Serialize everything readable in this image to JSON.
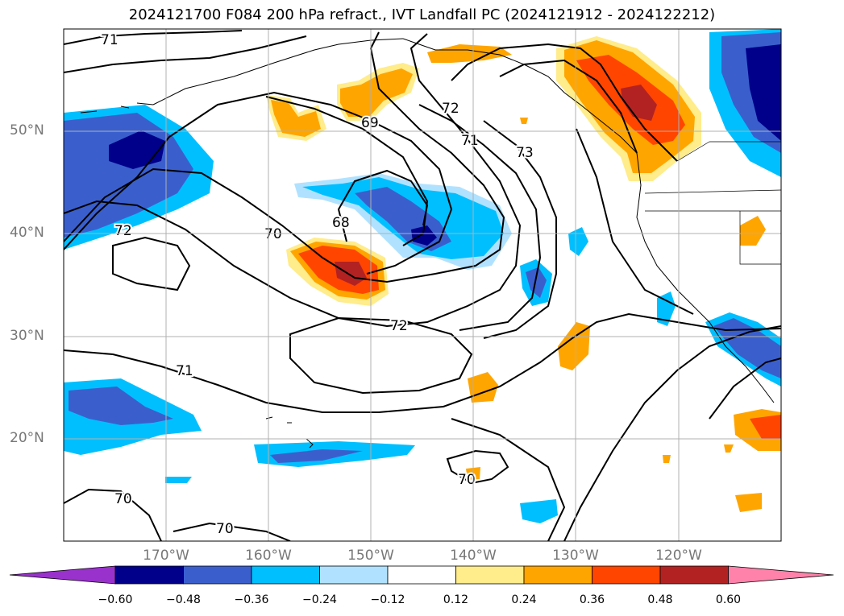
{
  "title": "2024121700 F084 200 hPa refract., IVT Landfall PC (2024121912 - 2024122212)",
  "map": {
    "type": "filled contour map with line contours",
    "grid": true,
    "lon_labels": [
      "170°W",
      "160°W",
      "150°W",
      "140°W",
      "130°W",
      "120°W"
    ],
    "lat_labels": [
      "50°N",
      "40°N",
      "30°N",
      "20°N"
    ],
    "contour_labels": [
      "71",
      "69",
      "72",
      "71",
      "73",
      "68",
      "70",
      "72",
      "72",
      "71",
      "70",
      "70",
      "70"
    ]
  },
  "colorbar": {
    "ticks": [
      "−0.60",
      "−0.48",
      "−0.36",
      "−0.24",
      "−0.12",
      "0.12",
      "0.24",
      "0.36",
      "0.48",
      "0.60"
    ],
    "colors": [
      "#9932cc",
      "#00008b",
      "#3a5fcd",
      "#00bfff",
      "#b0e2ff",
      "#ffffff",
      "#ffec8b",
      "#ffa500",
      "#ff4500",
      "#b22222",
      "#ff82ab"
    ]
  },
  "colors": {
    "dark_blue": "#00008b",
    "blue": "#3a5fcd",
    "cyan": "#00bfff",
    "light_blue": "#b0e2ff",
    "yellow": "#ffec8b",
    "orange": "#ffa500",
    "red_orange": "#ff4500",
    "dark_red": "#b22222"
  }
}
